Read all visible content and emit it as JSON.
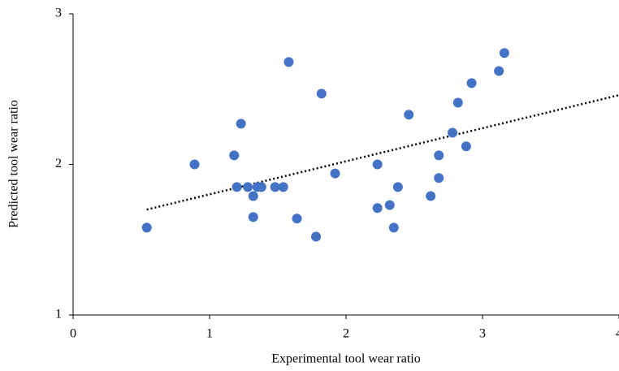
{
  "chart_data": {
    "type": "scatter",
    "x_label": "Experimental tool wear ratio",
    "y_label": "Predicted tool wear ratio",
    "series": [
      {
        "color": "#4472c4",
        "x": [
          0.54,
          0.89,
          1.18,
          1.23,
          1.2,
          1.28,
          1.32,
          1.35,
          1.38,
          1.32,
          1.48,
          1.54,
          1.58,
          1.64,
          1.78,
          1.82,
          1.92,
          2.23,
          2.23,
          2.32,
          2.35,
          2.38,
          2.46,
          2.62,
          2.68,
          2.68,
          2.78,
          2.82,
          2.88,
          2.92,
          3.12,
          3.16
        ],
        "values": [
          1.58,
          2.0,
          2.06,
          2.27,
          1.85,
          1.85,
          1.79,
          1.85,
          1.85,
          1.65,
          1.85,
          1.85,
          2.68,
          1.64,
          1.52,
          2.47,
          1.94,
          2.0,
          1.71,
          1.73,
          1.58,
          1.85,
          2.33,
          1.79,
          1.91,
          2.06,
          2.21,
          2.41,
          2.12,
          2.54,
          2.62,
          2.74
        ]
      }
    ],
    "trendline": {
      "color": "#000000",
      "x": [
        0.54,
        4
      ],
      "values": [
        1.7,
        2.46
      ]
    },
    "xlim": [
      0,
      4
    ],
    "xticks": [
      0,
      1,
      2,
      3,
      4
    ],
    "ylim": [
      1,
      3
    ],
    "yticks": [
      1,
      2,
      3
    ],
    "grid": false
  }
}
